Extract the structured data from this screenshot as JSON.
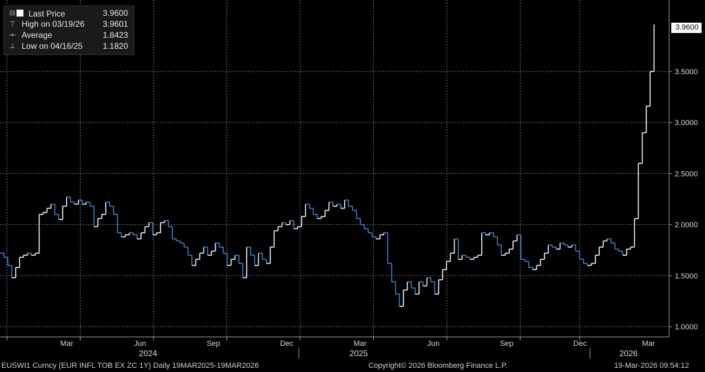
{
  "legend": {
    "last_price_label": "Last Price",
    "last_price_value": "3.9600",
    "high_label": "High on 03/19/26",
    "high_value": "3.9601",
    "average_label": "Average",
    "average_value": "1.8423",
    "low_label": "Low on 04/16/25",
    "low_value": "1.1820"
  },
  "last_tag": "3.9600",
  "footer": {
    "left": "EUSWI1 Curncy (EUR INFL TOB EX ZC 1Y) Daily 19MAR2025-19MAR2026",
    "center": "Copyright© 2026 Bloomberg Finance L.P.",
    "right": "19-Mar-2026 09:54:12"
  },
  "colors": {
    "background": "#000000",
    "line": "#ffffff",
    "down_shade": "#3a8ad8",
    "grid": "#6e6e6e"
  },
  "chart_data": {
    "type": "line",
    "title": "",
    "ylim": [
      0.9,
      4.2
    ],
    "y_ticks": [
      "1.0000",
      "1.5000",
      "2.0000",
      "2.5000",
      "3.0000",
      "3.5000"
    ],
    "x_ticks": [
      "Mar",
      "Jun",
      "Sep",
      "Dec",
      "Mar",
      "Jun",
      "Sep",
      "Dec",
      "Mar"
    ],
    "years": [
      "2024",
      "2025",
      "2026"
    ],
    "grid": true,
    "series": [
      {
        "name": "Last Price",
        "values": [
          1.72,
          1.68,
          1.6,
          1.48,
          1.58,
          1.68,
          1.7,
          1.72,
          1.7,
          1.72,
          2.1,
          2.12,
          2.16,
          2.2,
          2.1,
          2.05,
          2.18,
          2.27,
          2.22,
          2.2,
          2.24,
          2.2,
          2.22,
          2.18,
          1.98,
          2.06,
          2.1,
          2.22,
          2.18,
          2.1,
          1.92,
          1.88,
          1.9,
          1.92,
          1.9,
          1.86,
          1.92,
          1.98,
          2.02,
          1.9,
          1.92,
          2.02,
          2.04,
          1.98,
          1.86,
          1.84,
          1.82,
          1.78,
          1.7,
          1.6,
          1.66,
          1.72,
          1.78,
          1.7,
          1.74,
          1.82,
          1.78,
          1.72,
          1.6,
          1.66,
          1.7,
          1.62,
          1.48,
          1.78,
          1.7,
          1.6,
          1.72,
          1.66,
          1.62,
          1.78,
          1.94,
          1.98,
          2.02,
          2.0,
          2.04,
          1.96,
          1.98,
          2.08,
          2.2,
          2.16,
          2.1,
          2.06,
          2.08,
          2.14,
          2.22,
          2.18,
          2.2,
          2.16,
          2.24,
          2.18,
          2.14,
          2.06,
          2.0,
          1.96,
          1.92,
          1.88,
          1.86,
          1.9,
          1.92,
          1.62,
          1.44,
          1.32,
          1.2,
          1.36,
          1.44,
          1.38,
          1.32,
          1.44,
          1.4,
          1.48,
          1.44,
          1.32,
          1.46,
          1.56,
          1.64,
          1.72,
          1.86,
          1.66,
          1.7,
          1.68,
          1.66,
          1.68,
          1.7,
          1.92,
          1.9,
          1.92,
          1.88,
          1.8,
          1.7,
          1.72,
          1.76,
          1.84,
          1.9,
          1.66,
          1.64,
          1.58,
          1.56,
          1.6,
          1.66,
          1.72,
          1.8,
          1.78,
          1.76,
          1.82,
          1.8,
          1.78,
          1.8,
          1.74,
          1.66,
          1.62,
          1.6,
          1.62,
          1.7,
          1.78,
          1.84,
          1.86,
          1.82,
          1.76,
          1.74,
          1.7,
          1.76,
          1.78,
          2.06,
          2.6,
          2.9,
          3.16,
          3.5,
          3.96
        ]
      }
    ]
  }
}
